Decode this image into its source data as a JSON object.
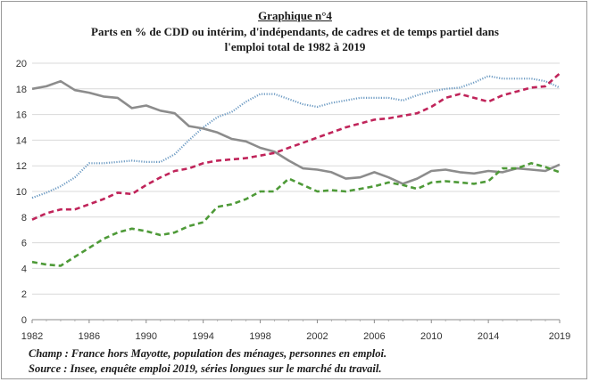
{
  "chart_data": {
    "type": "line",
    "title": "Graphique n°4",
    "subtitle_line1": "Parts en % de CDD ou intérim, d'indépendants, de cadres et de temps partiel dans",
    "subtitle_line2": "l'emploi total de 1982 à 2019",
    "xlabel": "",
    "ylabel": "",
    "xlim": [
      1982,
      2019
    ],
    "ylim": [
      0,
      20
    ],
    "x_ticks": [
      "1982",
      "1986",
      "1990",
      "1994",
      "1998",
      "2002",
      "2006",
      "2010",
      "2014",
      "2019"
    ],
    "y_ticks": [
      "0",
      "2",
      "4",
      "6",
      "8",
      "10",
      "12",
      "14",
      "16",
      "18",
      "20"
    ],
    "grid": true,
    "legend": "none",
    "x": [
      1982,
      1983,
      1984,
      1985,
      1986,
      1987,
      1988,
      1989,
      1990,
      1991,
      1992,
      1993,
      1994,
      1995,
      1996,
      1997,
      1998,
      1999,
      2000,
      2001,
      2002,
      2003,
      2004,
      2005,
      2006,
      2007,
      2008,
      2009,
      2010,
      2011,
      2012,
      2013,
      2014,
      2015,
      2016,
      2017,
      2018,
      2019
    ],
    "series": [
      {
        "color": "#6d9bc3",
        "style": "dotted",
        "values": [
          9.5,
          9.9,
          10.4,
          11.1,
          12.2,
          12.2,
          12.3,
          12.4,
          12.3,
          12.3,
          12.9,
          14.0,
          15.0,
          15.8,
          16.2,
          17.0,
          17.6,
          17.6,
          17.2,
          16.8,
          16.6,
          16.9,
          17.1,
          17.3,
          17.3,
          17.3,
          17.1,
          17.5,
          17.8,
          18.0,
          18.1,
          18.5,
          19.0,
          18.8,
          18.8,
          18.8,
          18.6,
          18.1
        ]
      },
      {
        "color": "#8c8c8c",
        "style": "solid",
        "values": [
          18.0,
          18.2,
          18.6,
          17.9,
          17.7,
          17.4,
          17.3,
          16.5,
          16.7,
          16.3,
          16.1,
          15.1,
          14.9,
          14.6,
          14.1,
          13.9,
          13.4,
          13.1,
          12.4,
          11.8,
          11.7,
          11.5,
          11.0,
          11.1,
          11.5,
          11.1,
          10.6,
          11.0,
          11.6,
          11.7,
          11.5,
          11.4,
          11.6,
          11.5,
          11.8,
          11.7,
          11.6,
          12.1
        ]
      },
      {
        "color": "#c0245a",
        "style": "dashed",
        "values": [
          7.8,
          8.3,
          8.6,
          8.6,
          9.0,
          9.4,
          9.9,
          9.8,
          10.5,
          11.1,
          11.6,
          11.8,
          12.2,
          12.4,
          12.5,
          12.6,
          12.8,
          13.0,
          13.4,
          13.8,
          14.2,
          14.6,
          15.0,
          15.3,
          15.6,
          15.7,
          15.9,
          16.1,
          16.6,
          17.3,
          17.6,
          17.3,
          17.0,
          17.5,
          17.8,
          18.1,
          18.2,
          19.2
        ]
      },
      {
        "color": "#4e9a38",
        "style": "dashed",
        "values": [
          4.5,
          4.3,
          4.2,
          4.9,
          5.6,
          6.3,
          6.8,
          7.1,
          6.9,
          6.6,
          6.8,
          7.3,
          7.6,
          8.8,
          9.0,
          9.4,
          10.0,
          10.0,
          11.0,
          10.5,
          10.0,
          10.1,
          10.0,
          10.2,
          10.4,
          10.7,
          10.5,
          10.2,
          10.7,
          10.8,
          10.7,
          10.6,
          10.8,
          11.8,
          11.8,
          12.2,
          11.9,
          11.5
        ]
      }
    ]
  },
  "notes": {
    "champ": "Champ : France hors Mayotte, population des ménages, personnes en emploi.",
    "source": "Source : Insee, enquête emploi 2019, séries longues sur le marché du travail."
  }
}
